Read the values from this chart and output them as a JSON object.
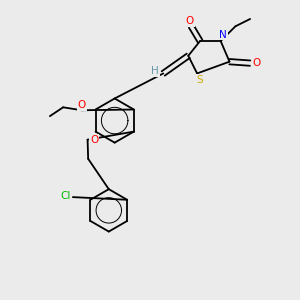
{
  "background_color": "#ebebeb",
  "figsize": [
    3.0,
    3.0
  ],
  "dpi": 100,
  "bond_lw": 1.3,
  "font_size": 7.5,
  "colors": {
    "C": "#000000",
    "H": "#6699aa",
    "N": "#0000ff",
    "O": "#ff0000",
    "S": "#ccaa00",
    "Cl": "#00bb00"
  }
}
